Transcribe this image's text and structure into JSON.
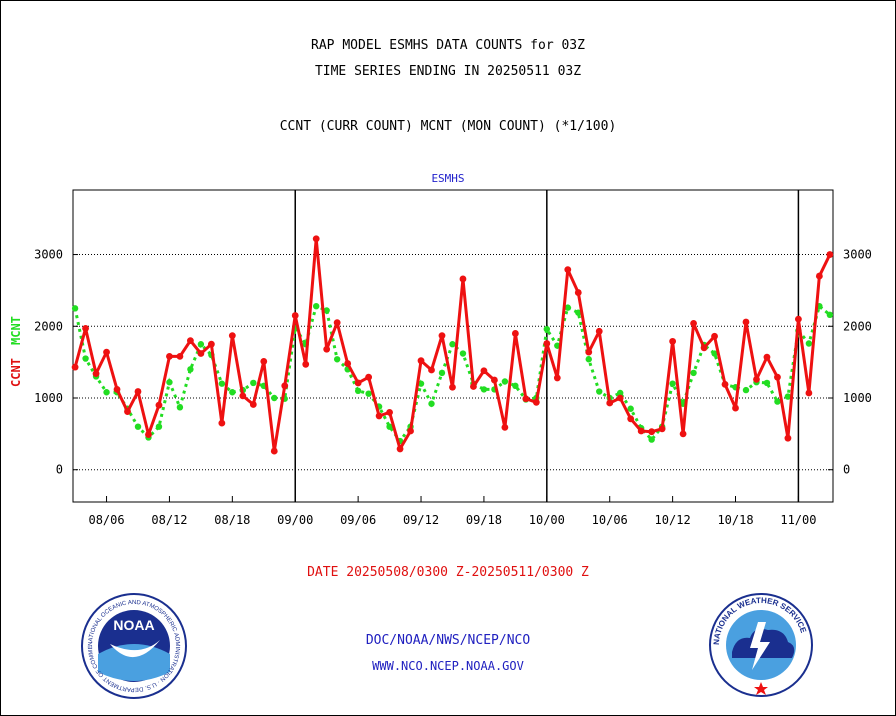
{
  "header": {
    "title_line1": "RAP MODEL ESMHS DATA COUNTS for 03Z",
    "title_line2": "TIME SERIES ENDING IN 20250511 03Z",
    "subtitle": "CCNT (CURR COUNT) MCNT (MON COUNT) (*1/100)"
  },
  "footer": {
    "date_range": "DATE 20250508/0300 Z-20250511/0300 Z",
    "org": "DOC/NOAA/NWS/NCEP/NCO",
    "url": "WWW.NCO.NCEP.NOAA.GOV"
  },
  "logos": {
    "noaa_text": "NOAA",
    "noaa_ring": "NATIONAL OCEANIC AND ATMOSPHERIC ADMINISTRATION · U.S. DEPARTMENT OF COMMERCE",
    "nws_ring": "NATIONAL WEATHER SERVICE"
  },
  "colors": {
    "ccnt": "#ee1111",
    "mcnt": "#22dd22",
    "accent_blue": "#2020c0"
  },
  "chart_data": {
    "type": "line",
    "title": "ESMHS",
    "ylabel_left": [
      "CCNT",
      "MCNT"
    ],
    "ylim": [
      -450,
      3900
    ],
    "yticks": [
      0,
      1000,
      2000,
      3000
    ],
    "grid": "horizontal dotted at y ticks",
    "xticks": [
      {
        "x": 3,
        "label": "08/06"
      },
      {
        "x": 9,
        "label": "08/12"
      },
      {
        "x": 15,
        "label": "08/18"
      },
      {
        "x": 21,
        "label": "09/00"
      },
      {
        "x": 27,
        "label": "09/06"
      },
      {
        "x": 33,
        "label": "09/12"
      },
      {
        "x": 39,
        "label": "09/18"
      },
      {
        "x": 45,
        "label": "10/00"
      },
      {
        "x": 51,
        "label": "10/06"
      },
      {
        "x": 57,
        "label": "10/12"
      },
      {
        "x": 63,
        "label": "10/18"
      },
      {
        "x": 69,
        "label": "11/00"
      }
    ],
    "day_separators": [
      21,
      45,
      69
    ],
    "xlim": [
      -0.2,
      72.3
    ],
    "series": [
      {
        "name": "CCNT",
        "color": "#ee1111",
        "values": [
          1430,
          1970,
          1340,
          1640,
          1120,
          810,
          1090,
          490,
          900,
          1580,
          1580,
          1800,
          1620,
          1750,
          650,
          1870,
          1030,
          910,
          1510,
          260,
          1170,
          2150,
          1470,
          3220,
          1680,
          2050,
          1480,
          1210,
          1290,
          750,
          800,
          290,
          540,
          1520,
          1390,
          1870,
          1150,
          2660,
          1160,
          1380,
          1250,
          590,
          1900,
          990,
          940,
          1760,
          1280,
          2790,
          2470,
          1640,
          1930,
          930,
          1000,
          710,
          540,
          530,
          570,
          1790,
          500,
          2040,
          1700,
          1860,
          1190,
          860,
          2060,
          1260,
          1570,
          1290,
          440,
          2100,
          1070,
          2700,
          3000
        ]
      },
      {
        "name": "MCNT",
        "color": "#22dd22",
        "values": [
          2250,
          1550,
          1300,
          1080,
          1080,
          850,
          600,
          450,
          600,
          1220,
          870,
          1400,
          1750,
          1600,
          1200,
          1080,
          1110,
          1210,
          1170,
          1000,
          990,
          1980,
          1750,
          2280,
          2220,
          1540,
          1400,
          1100,
          1060,
          880,
          600,
          400,
          600,
          1200,
          920,
          1350,
          1750,
          1620,
          1200,
          1120,
          1120,
          1230,
          1170,
          980,
          1000,
          1960,
          1730,
          2260,
          2190,
          1540,
          1090,
          1000,
          1070,
          850,
          580,
          420,
          600,
          1200,
          920,
          1350,
          1740,
          1620,
          1190,
          1150,
          1110,
          1220,
          1210,
          950,
          1020,
          1940,
          1760,
          2280,
          2160
        ]
      }
    ]
  }
}
